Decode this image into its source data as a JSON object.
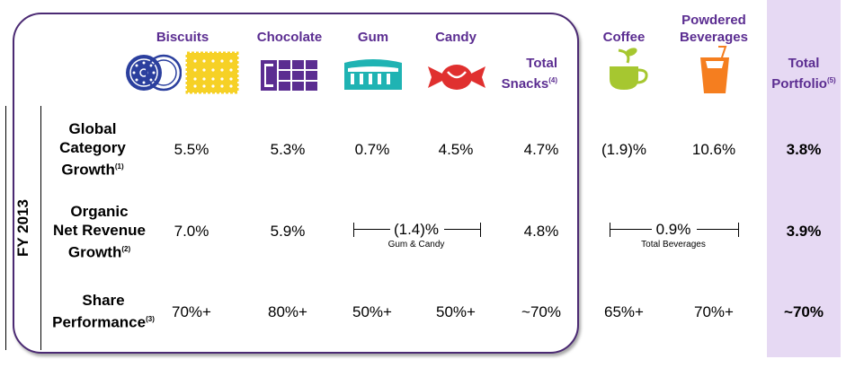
{
  "period_label": "FY 2013",
  "headers": {
    "biscuits": "Biscuits",
    "chocolate": "Chocolate",
    "gum": "Gum",
    "candy": "Candy",
    "total_snacks_line1": "Total",
    "total_snacks_line2": "Snacks",
    "total_snacks_note": "(4)",
    "coffee": "Coffee",
    "powdered_line1": "Powdered",
    "powdered_line2": "Beverages",
    "total_portfolio_line1": "Total",
    "total_portfolio_line2": "Portfolio",
    "total_portfolio_note": "(5)"
  },
  "rows": {
    "growth": {
      "label_line1": "Global",
      "label_line2": "Category",
      "label_line3": "Growth",
      "note": "(1)",
      "biscuits": "5.5%",
      "chocolate": "5.3%",
      "gum": "0.7%",
      "candy": "4.5%",
      "total_snacks": "4.7%",
      "coffee": "(1.9)%",
      "powdered": "10.6%",
      "total_portfolio": "3.8%"
    },
    "organic": {
      "label_line1": "Organic",
      "label_line2": "Net Revenue",
      "label_line3": "Growth",
      "note": "(2)",
      "biscuits": "7.0%",
      "chocolate": "5.9%",
      "gum_candy": "(1.4)%",
      "gum_candy_caption": "Gum & Candy",
      "total_snacks": "4.8%",
      "beverages": "0.9%",
      "beverages_caption": "Total Beverages",
      "total_portfolio": "3.9%"
    },
    "share": {
      "label_line1": "Share",
      "label_line2": "Performance",
      "note": "(3)",
      "biscuits": "70%+",
      "chocolate": "80%+",
      "gum": "50%+",
      "candy": "50%+",
      "total_snacks": "~70%",
      "coffee": "65%+",
      "powdered": "70%+",
      "total_portfolio": "~70%"
    }
  },
  "icons": [
    "oreo-cookie-icon",
    "cracker-icon",
    "chocolate-bar-icon",
    "gum-pack-icon",
    "wrapped-candy-icon",
    "coffee-cup-icon",
    "drink-glass-icon"
  ],
  "colors": {
    "purple": "#5b2d91",
    "blue": "#2b3f9e",
    "yellow": "#f6d126",
    "teal": "#1fb3b3",
    "red": "#e0302f",
    "green": "#a6c730",
    "orange": "#f57e1f",
    "portfolio_bg": "#e6d9f3"
  }
}
